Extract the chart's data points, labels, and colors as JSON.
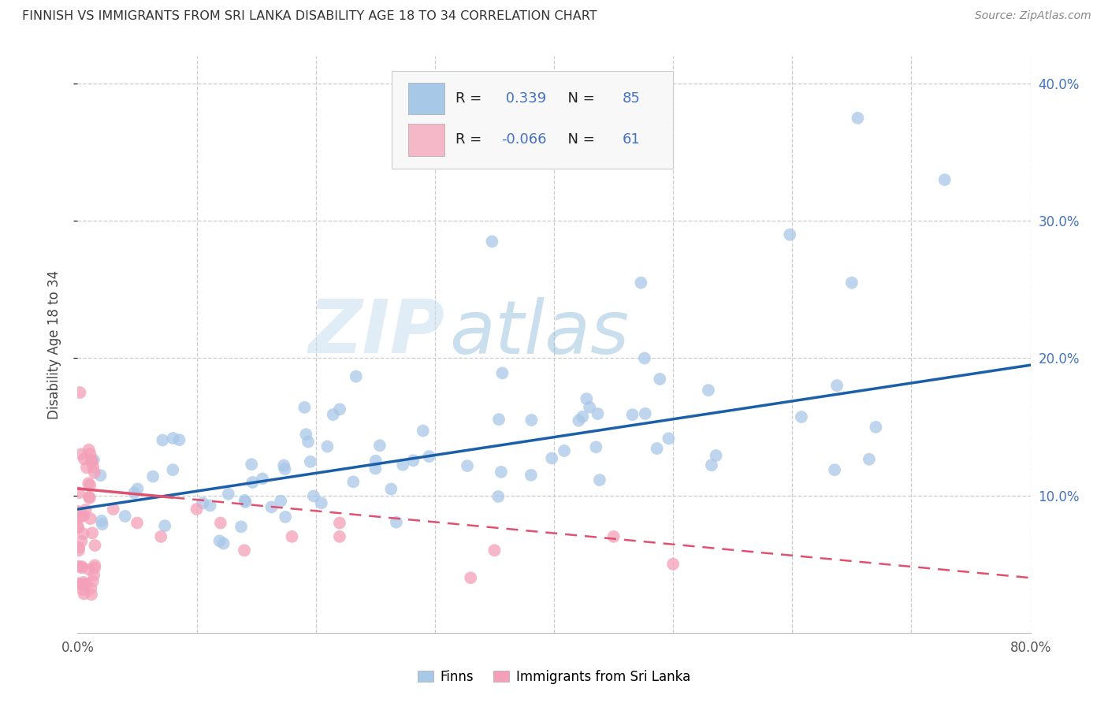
{
  "title": "FINNISH VS IMMIGRANTS FROM SRI LANKA DISABILITY AGE 18 TO 34 CORRELATION CHART",
  "source": "Source: ZipAtlas.com",
  "ylabel": "Disability Age 18 to 34",
  "finn_R": 0.339,
  "finn_N": 85,
  "srilanka_R": -0.066,
  "srilanka_N": 61,
  "xlim": [
    0.0,
    0.8
  ],
  "ylim": [
    0.0,
    0.42
  ],
  "blue_color": "#a8c8e8",
  "pink_color": "#f4a0b8",
  "blue_line_color": "#1a5fa8",
  "pink_line_color": "#e05070",
  "pink_line_dash_color": "#f0a0b8",
  "grid_color": "#cccccc",
  "background_color": "#ffffff",
  "watermark": "ZIPatlas",
  "legend_blue_patch": "#a8c8e8",
  "legend_pink_patch": "#f4b8c8",
  "text_color_blue": "#4472c4",
  "text_color_dark": "#333333"
}
